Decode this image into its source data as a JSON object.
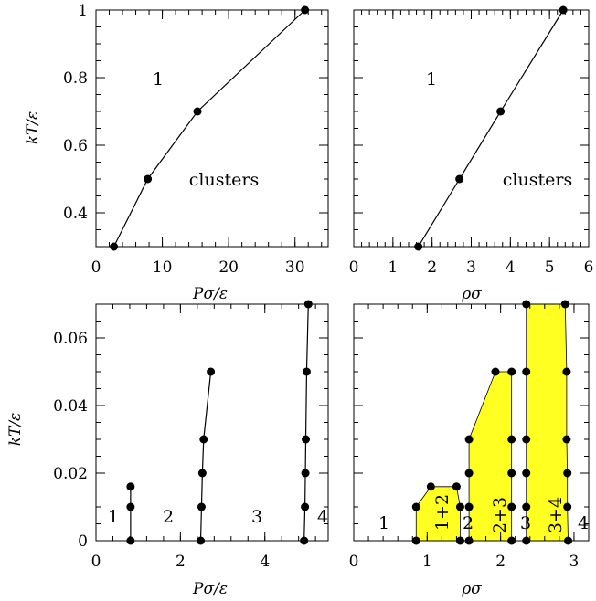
{
  "figure": {
    "colors": {
      "coexistence_fill": "#ffff22",
      "ink": "#000000",
      "background": "#ffffff"
    }
  },
  "chart_data": [
    {
      "id": "top-left",
      "type": "line",
      "xlabel": "Pσ/ε",
      "ylabel": "kT/ε",
      "xlim": [
        0,
        35
      ],
      "ylim": [
        0.3,
        1.0
      ],
      "xticks": [
        "0",
        "10",
        "20",
        "30"
      ],
      "yticks": [
        "0.4",
        "0.6",
        "0.8",
        "1"
      ],
      "series": [
        {
          "x": [
            2.7,
            7.8,
            15.3,
            31.5
          ],
          "y": [
            0.3,
            0.5,
            0.7,
            1.0
          ]
        }
      ],
      "region_labels": [
        "1",
        "clusters"
      ]
    },
    {
      "id": "top-right",
      "type": "line",
      "xlabel": "ρσ",
      "ylabel": "",
      "xlim": [
        0,
        6
      ],
      "ylim": [
        0.3,
        1.0
      ],
      "xticks": [
        "0",
        "1",
        "2",
        "3",
        "4",
        "5",
        "6"
      ],
      "yticks": [],
      "series": [
        {
          "x": [
            1.65,
            2.7,
            3.75,
            5.35
          ],
          "y": [
            0.3,
            0.5,
            0.7,
            1.0
          ]
        }
      ],
      "region_labels": [
        "1",
        "clusters"
      ]
    },
    {
      "id": "bottom-left",
      "type": "line",
      "xlabel": "Pσ/ε",
      "ylabel": "kT/ε",
      "xlim": [
        0,
        5.5
      ],
      "ylim": [
        0,
        0.07
      ],
      "xticks": [
        "0",
        "2",
        "4"
      ],
      "yticks": [
        "0",
        "0.02",
        "0.04",
        "0.06"
      ],
      "series": [
        {
          "x": [
            0.82,
            0.82,
            0.82
          ],
          "y": [
            0.0,
            0.01,
            0.016
          ]
        },
        {
          "x": [
            2.48,
            2.5,
            2.52,
            2.55,
            2.72
          ],
          "y": [
            0.0,
            0.01,
            0.02,
            0.03,
            0.05
          ]
        },
        {
          "x": [
            4.93,
            4.95,
            4.96,
            4.97,
            4.99,
            5.03
          ],
          "y": [
            0.0,
            0.01,
            0.02,
            0.03,
            0.05,
            0.07
          ]
        }
      ],
      "region_labels": [
        "1",
        "2",
        "3",
        "4"
      ]
    },
    {
      "id": "bottom-right",
      "type": "area",
      "xlabel": "ρσ",
      "ylabel": "",
      "xlim": [
        0,
        3.2
      ],
      "ylim": [
        0,
        0.07
      ],
      "xticks": [
        "0",
        "1",
        "2",
        "3"
      ],
      "yticks": [],
      "regions": [
        {
          "label": "1+2",
          "x": [
            0.85,
            0.85,
            1.05,
            1.4,
            1.45,
            1.45
          ],
          "y": [
            0.0,
            0.01,
            0.016,
            0.016,
            0.01,
            0.0
          ]
        },
        {
          "label": "2+3",
          "x": [
            1.57,
            1.57,
            1.57,
            1.57,
            1.57,
            1.93,
            2.15,
            2.15,
            2.15,
            2.15,
            2.15,
            2.15
          ],
          "y": [
            0.0,
            0.01,
            0.02,
            0.03,
            0.03,
            0.05,
            0.05,
            0.03,
            0.02,
            0.01,
            0.0,
            0.0
          ]
        },
        {
          "label": "3+4",
          "x": [
            2.35,
            2.35,
            2.35,
            2.35,
            2.35,
            2.35,
            2.88,
            2.9,
            2.9,
            2.91,
            2.91,
            2.92
          ],
          "y": [
            0.0,
            0.01,
            0.02,
            0.03,
            0.05,
            0.07,
            0.07,
            0.05,
            0.03,
            0.02,
            0.01,
            0.0
          ]
        }
      ],
      "points": [
        {
          "x": 0.85,
          "y": 0.0
        },
        {
          "x": 0.85,
          "y": 0.01
        },
        {
          "x": 1.05,
          "y": 0.016
        },
        {
          "x": 1.4,
          "y": 0.016
        },
        {
          "x": 1.45,
          "y": 0.01
        },
        {
          "x": 1.45,
          "y": 0.0
        },
        {
          "x": 1.57,
          "y": 0.0
        },
        {
          "x": 1.57,
          "y": 0.01
        },
        {
          "x": 1.57,
          "y": 0.02
        },
        {
          "x": 1.57,
          "y": 0.03
        },
        {
          "x": 1.93,
          "y": 0.05
        },
        {
          "x": 2.15,
          "y": 0.05
        },
        {
          "x": 2.15,
          "y": 0.03
        },
        {
          "x": 2.15,
          "y": 0.02
        },
        {
          "x": 2.15,
          "y": 0.01
        },
        {
          "x": 2.15,
          "y": 0.0
        },
        {
          "x": 2.35,
          "y": 0.0
        },
        {
          "x": 2.35,
          "y": 0.01
        },
        {
          "x": 2.35,
          "y": 0.02
        },
        {
          "x": 2.35,
          "y": 0.03
        },
        {
          "x": 2.35,
          "y": 0.05
        },
        {
          "x": 2.35,
          "y": 0.07
        },
        {
          "x": 2.88,
          "y": 0.07
        },
        {
          "x": 2.9,
          "y": 0.05
        },
        {
          "x": 2.9,
          "y": 0.03
        },
        {
          "x": 2.91,
          "y": 0.02
        },
        {
          "x": 2.91,
          "y": 0.01
        },
        {
          "x": 2.92,
          "y": 0.0
        }
      ],
      "region_labels": [
        "1",
        "2",
        "3",
        "4"
      ]
    }
  ]
}
